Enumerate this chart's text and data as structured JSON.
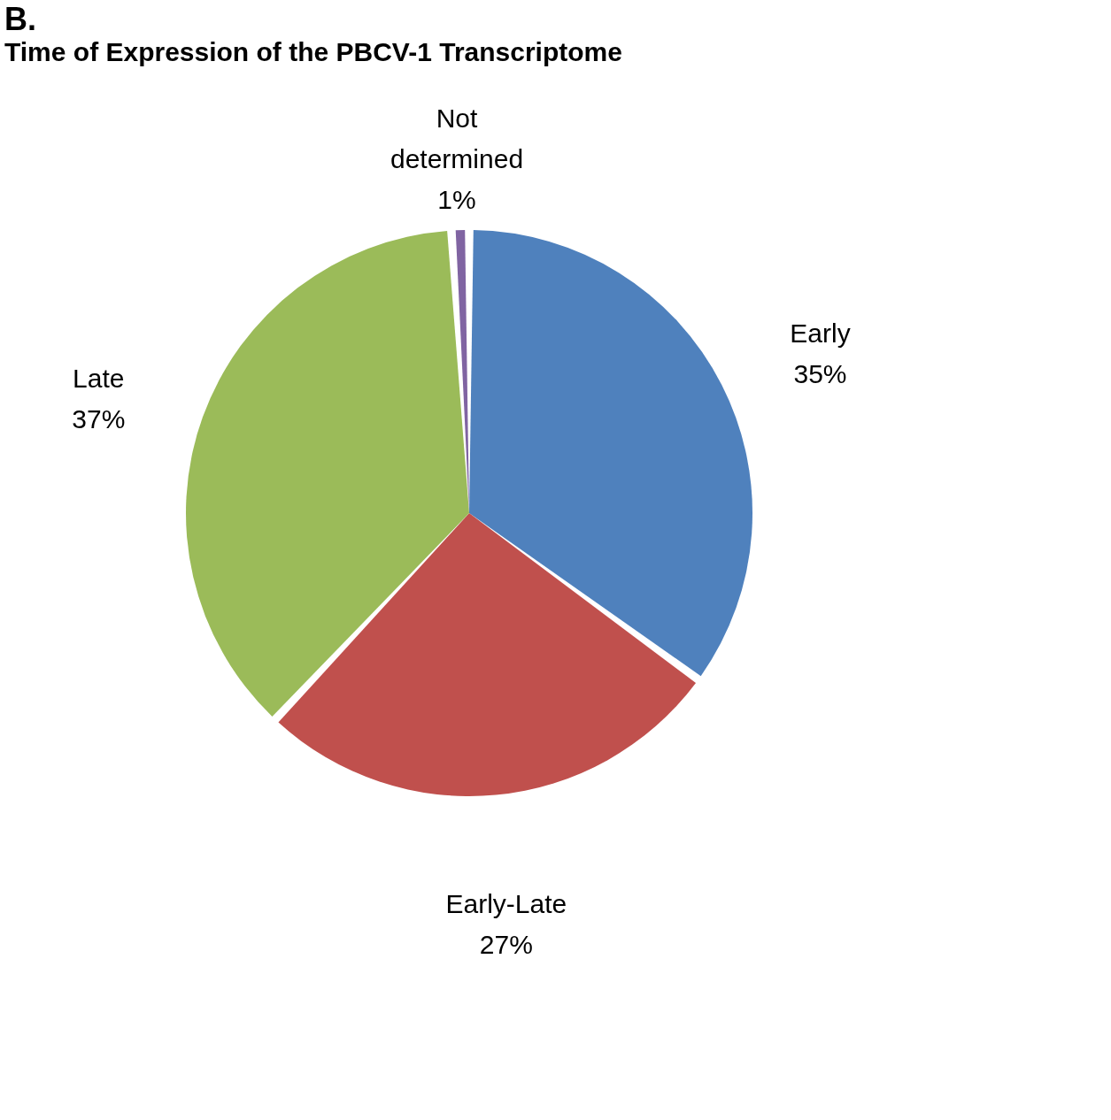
{
  "chart_data": {
    "type": "pie",
    "title": "B.",
    "subtitle": "Time of Expression of the PBCV-1 Transcriptome",
    "categories": [
      "Early",
      "Early-Late",
      "Late",
      "Not determined"
    ],
    "values": [
      35,
      27,
      37,
      1
    ],
    "value_labels": [
      "35%",
      "27%",
      "37%",
      "1%"
    ],
    "colors": [
      "#4f81bd",
      "#c0504d",
      "#9bbb59",
      "#8064a2"
    ],
    "legend": false
  }
}
